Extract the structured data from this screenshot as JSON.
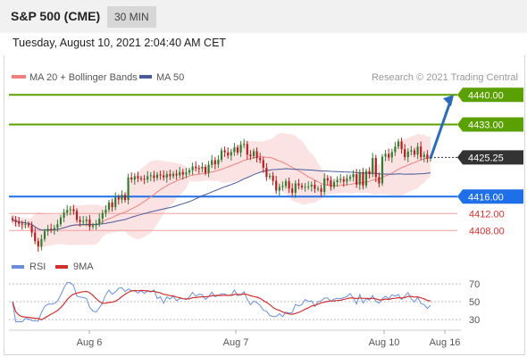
{
  "header": {
    "title": "S&P 500 (CME)",
    "timeframe": "30 MIN",
    "timestamp": "Tuesday, August 10, 2021 2:04:40 AM CET"
  },
  "legend": {
    "ma20": "MA 20 + Bollinger Bands",
    "ma50": "MA 50",
    "copyright": "Research © 2021 Trading Central"
  },
  "rsi_legend": {
    "rsi": "RSI",
    "ma": "9MA"
  },
  "colors": {
    "resistance": "#5aa000",
    "pivot": "#1f6fe8",
    "support": "#e03030",
    "price": "#333333",
    "ma20": "#f08080",
    "bands": "#fadada",
    "ma50": "#4a5a9a",
    "arrow": "#2a6cb8",
    "rsi": "#6a8fe0",
    "rsi_ma": "#d03030",
    "bull": "#2e7d32",
    "bear": "#b71c1c"
  },
  "chart_data": [
    {
      "type": "candlestick",
      "title": "S&P 500 (CME)",
      "timeframe": "30 MIN",
      "x_tick_labels": [
        "Aug 6",
        "Aug 7",
        "Aug 10",
        "Aug 16"
      ],
      "ylim": [
        4403,
        4443
      ],
      "current_price": "4425.25",
      "levels": [
        {
          "label": "4440.00",
          "value": 4440.0,
          "kind": "resistance"
        },
        {
          "label": "4433.00",
          "value": 4433.0,
          "kind": "resistance"
        },
        {
          "label": "4416.00",
          "value": 4416.0,
          "kind": "pivot"
        },
        {
          "label": "4412.00",
          "value": 4412.0,
          "kind": "support"
        },
        {
          "label": "4408.00",
          "value": 4408.0,
          "kind": "support"
        }
      ],
      "close_series": [
        4410.5,
        4410.0,
        4409.6,
        4409.4,
        4409.5,
        4409.2,
        4407.5,
        4405.5,
        4404.2,
        4406.0,
        4407.8,
        4408.4,
        4408.2,
        4408.6,
        4409.5,
        4411.0,
        4412.2,
        4412.8,
        4413.0,
        4412.6,
        4410.5,
        4410.0,
        4410.2,
        4410.6,
        4408.9,
        4409.2,
        4409.6,
        4410.8,
        4412.1,
        4412.9,
        4414.6,
        4413.5,
        4415.8,
        4415.3,
        4416.4,
        4415.2,
        4420.5,
        4420.0,
        4420.8,
        4420.3,
        4420.2,
        4420.0,
        4420.8,
        4421.0,
        4420.4,
        4421.2,
        4421.0,
        4420.5,
        4421.3,
        4420.8,
        4421.4,
        4421.0,
        4421.8,
        4421.2,
        4421.7,
        4422.2,
        4423.1,
        4422.7,
        4422.6,
        4423.0,
        4421.6,
        4423.5,
        4424.6,
        4423.6,
        4424.7,
        4426.9,
        4426.4,
        4425.7,
        4426.5,
        4427.6,
        4426.4,
        4428.2,
        4428.4,
        4425.9,
        4425.5,
        4426.7,
        4425.1,
        4424.6,
        4422.8,
        4420.6,
        4420.9,
        4419.7,
        4417.4,
        4418.3,
        4418.5,
        4419.6,
        4417.9,
        4416.9,
        4419.1,
        4418.6,
        4418.2,
        4418.3,
        4418.4,
        4418.8,
        4417.8,
        4417.9,
        4417.1,
        4420.3,
        4419.8,
        4418.3,
        4419.4,
        4419.9,
        4420.1,
        4419.5,
        4420.2,
        4420.6,
        4421.3,
        4418.8,
        4421.7,
        4418.6,
        4422.0,
        4421.3,
        4425.1,
        4420.6,
        4419.1,
        4425.4,
        4426.1,
        4425.2,
        4426.5,
        4427.8,
        4429.0,
        4427.2,
        4425.3,
        4426.6,
        4426.9,
        4425.9,
        4427.8,
        4425.3,
        4425.9,
        4424.9,
        4425.2
      ],
      "rsi": {
        "levels": [
          70,
          50,
          30
        ],
        "ylim": [
          22,
          78
        ]
      }
    }
  ]
}
